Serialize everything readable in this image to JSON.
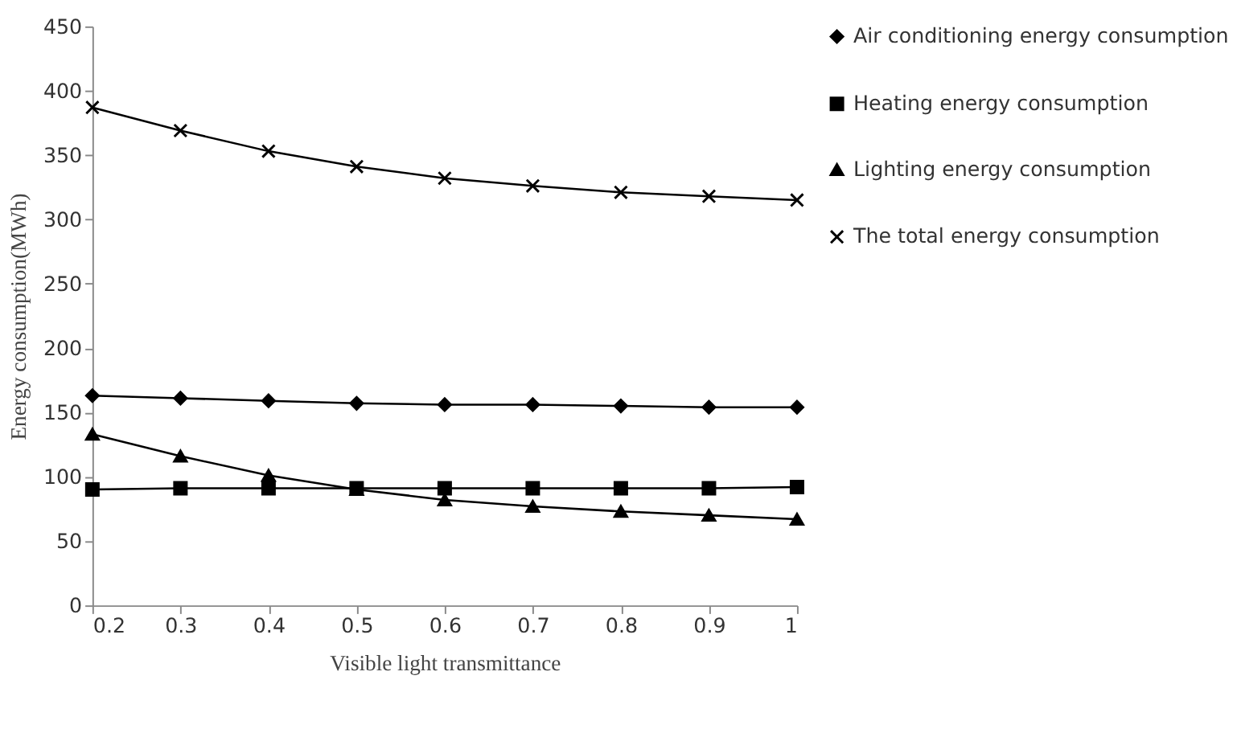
{
  "chart_data": {
    "type": "line",
    "xlabel": "Visible light transmittance",
    "ylabel": "Energy consumption(MWh)",
    "x": [
      0.2,
      0.3,
      0.4,
      0.5,
      0.6,
      0.7,
      0.8,
      0.9,
      1
    ],
    "xlim": [
      0.2,
      1
    ],
    "xticks": [
      0.2,
      0.3,
      0.4,
      0.5,
      0.6,
      0.7,
      0.8,
      0.9,
      1
    ],
    "ylim": [
      0,
      450
    ],
    "yticks": [
      0,
      50,
      100,
      150,
      200,
      250,
      300,
      350,
      400,
      450
    ],
    "grid": false,
    "legend": "right",
    "line_style": "solid",
    "series": [
      {
        "name": "Air conditioning energy consumption",
        "color": "#000000",
        "marker": "diamond",
        "values": [
          163,
          161,
          159,
          157,
          156,
          156,
          155,
          154,
          154
        ]
      },
      {
        "name": "Heating energy consumption",
        "color": "#000000",
        "marker": "square",
        "values": [
          90,
          91,
          91,
          91,
          91,
          91,
          91,
          91,
          92
        ]
      },
      {
        "name": "Lighting energy consumption",
        "color": "#000000",
        "marker": "triangle",
        "values": [
          133,
          116,
          101,
          90,
          82,
          77,
          73,
          70,
          67
        ]
      },
      {
        "name": "The total energy consumption",
        "color": "#000000",
        "marker": "cross",
        "values": [
          387,
          369,
          353,
          341,
          332,
          326,
          321,
          318,
          315
        ]
      }
    ]
  }
}
